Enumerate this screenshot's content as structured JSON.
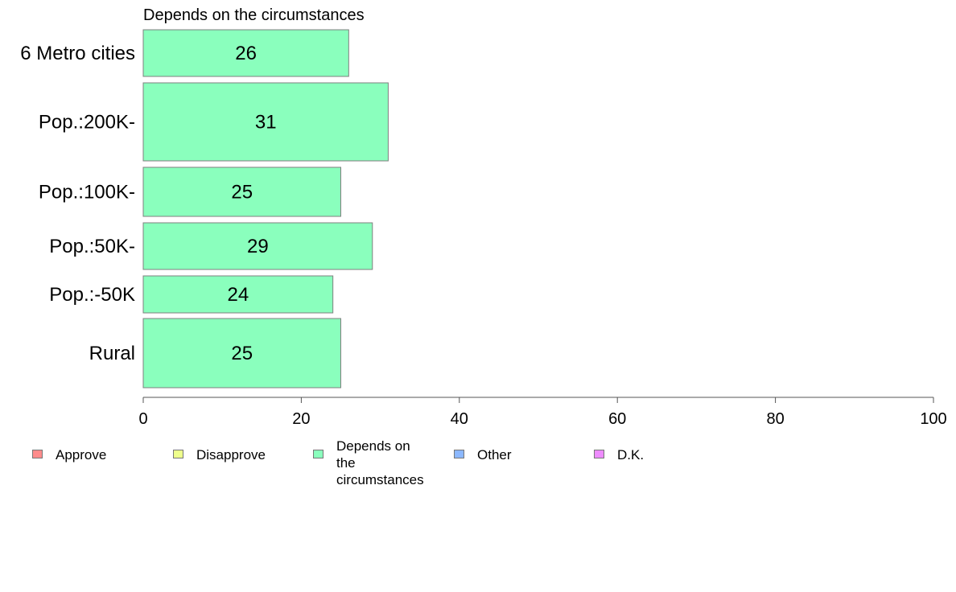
{
  "chart_data": {
    "type": "bar",
    "orientation": "horizontal",
    "title": "Depends on the circumstances",
    "categories": [
      "6 Metro cities",
      "Pop.:200K-",
      "Pop.:100K-",
      "Pop.:50K-",
      "Pop.:-50K",
      "Rural"
    ],
    "series": [
      {
        "name": "Depends on the circumstances",
        "values": [
          26,
          31,
          25,
          29,
          24,
          25
        ],
        "color": "#8affbd"
      }
    ],
    "xlim": [
      0,
      100
    ],
    "xticks": [
      "0",
      "20",
      "40",
      "60",
      "80",
      "100"
    ],
    "grid": false,
    "legend_position": "bottom"
  },
  "legend": {
    "items": [
      {
        "label": "Approve",
        "color": "#ff8c8c"
      },
      {
        "label": "Disapprove",
        "color": "#eeff8c"
      },
      {
        "label": "Depends on the\ncircumstances",
        "color": "#8affbd"
      },
      {
        "label": "Other",
        "color": "#8cb8ff"
      },
      {
        "label": "D.K.",
        "color": "#ee8cff"
      }
    ]
  }
}
